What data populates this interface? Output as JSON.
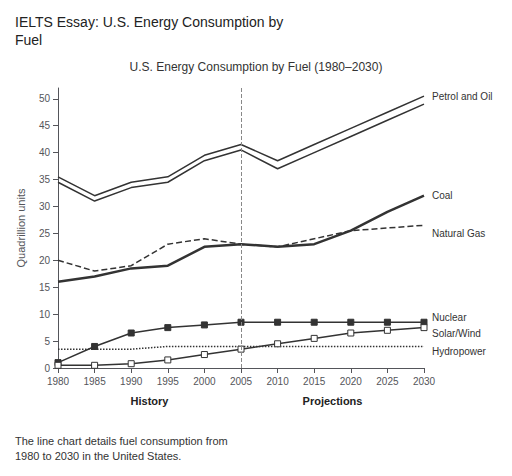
{
  "chart_data": {
    "type": "line",
    "title": "U.S. Energy Consumption by Fuel (1980–2030)",
    "outer_title": "IELTS Essay: U.S. Energy Consumption by\nFuel",
    "subtitle": "The line chart details fuel consumption from\n1980 to 2030 in the United States.",
    "ylabel": "Quadrillion units",
    "x": [
      1980,
      1985,
      1990,
      1995,
      2000,
      2005,
      2010,
      2015,
      2020,
      2025,
      2030
    ],
    "series": [
      {
        "color": "#333333",
        "line_style": "solid",
        "marker": "none",
        "values": [
          34.5,
          31.0,
          33.5,
          34.5,
          38.5,
          40.5,
          37.0,
          40.0,
          43.0,
          46.0,
          49.0
        ]
      },
      {
        "name": "Petrol and Oil",
        "color": "#333333",
        "line_style": "solid",
        "marker": "none",
        "values": [
          35.5,
          32.0,
          34.5,
          35.5,
          39.5,
          41.5,
          38.5,
          41.5,
          44.5,
          47.5,
          50.5
        ]
      },
      {
        "name": "Coal",
        "color": "#333333",
        "line_style": "solid",
        "marker": "none",
        "values": [
          16.0,
          17.0,
          18.5,
          19.0,
          22.5,
          23.0,
          22.5,
          23.0,
          25.5,
          29.0,
          32.0
        ]
      },
      {
        "name": "Natural Gas",
        "color": "#333333",
        "line_style": "dashed",
        "marker": "none",
        "values": [
          20.0,
          18.0,
          19.0,
          23.0,
          24.0,
          23.0,
          22.5,
          24.0,
          25.5,
          26.0,
          26.5
        ]
      },
      {
        "name": "Nuclear",
        "color": "#333333",
        "line_style": "solid",
        "marker": "square",
        "values": [
          1.0,
          4.0,
          6.5,
          7.5,
          8.0,
          8.5,
          8.5,
          8.5,
          8.5,
          8.5,
          8.5
        ]
      },
      {
        "name": "Solar/Wind",
        "color": "#333333",
        "line_style": "solid",
        "marker": "open_square",
        "values": [
          0.5,
          0.5,
          0.8,
          1.5,
          2.5,
          3.5,
          4.5,
          5.5,
          6.5,
          7.0,
          7.5
        ]
      },
      {
        "name": "Hydropower",
        "color": "#333333",
        "line_style": "dotted",
        "marker": "none",
        "values": [
          3.5,
          3.5,
          3.5,
          4.0,
          4.0,
          4.0,
          4.0,
          4.0,
          4.0,
          4.0,
          4.0
        ]
      }
    ],
    "xlim": [
      1980,
      2030
    ],
    "xticks": [
      1980,
      1985,
      1990,
      1995,
      2000,
      2005,
      2010,
      2015,
      2020,
      2025,
      2030
    ],
    "ylim": [
      0,
      52
    ],
    "yticks": [
      0,
      5,
      10,
      15,
      20,
      25,
      30,
      35,
      40,
      45,
      50
    ],
    "grid": false,
    "divider_x": 2005,
    "period_labels": [
      "History",
      "Projections"
    ]
  }
}
